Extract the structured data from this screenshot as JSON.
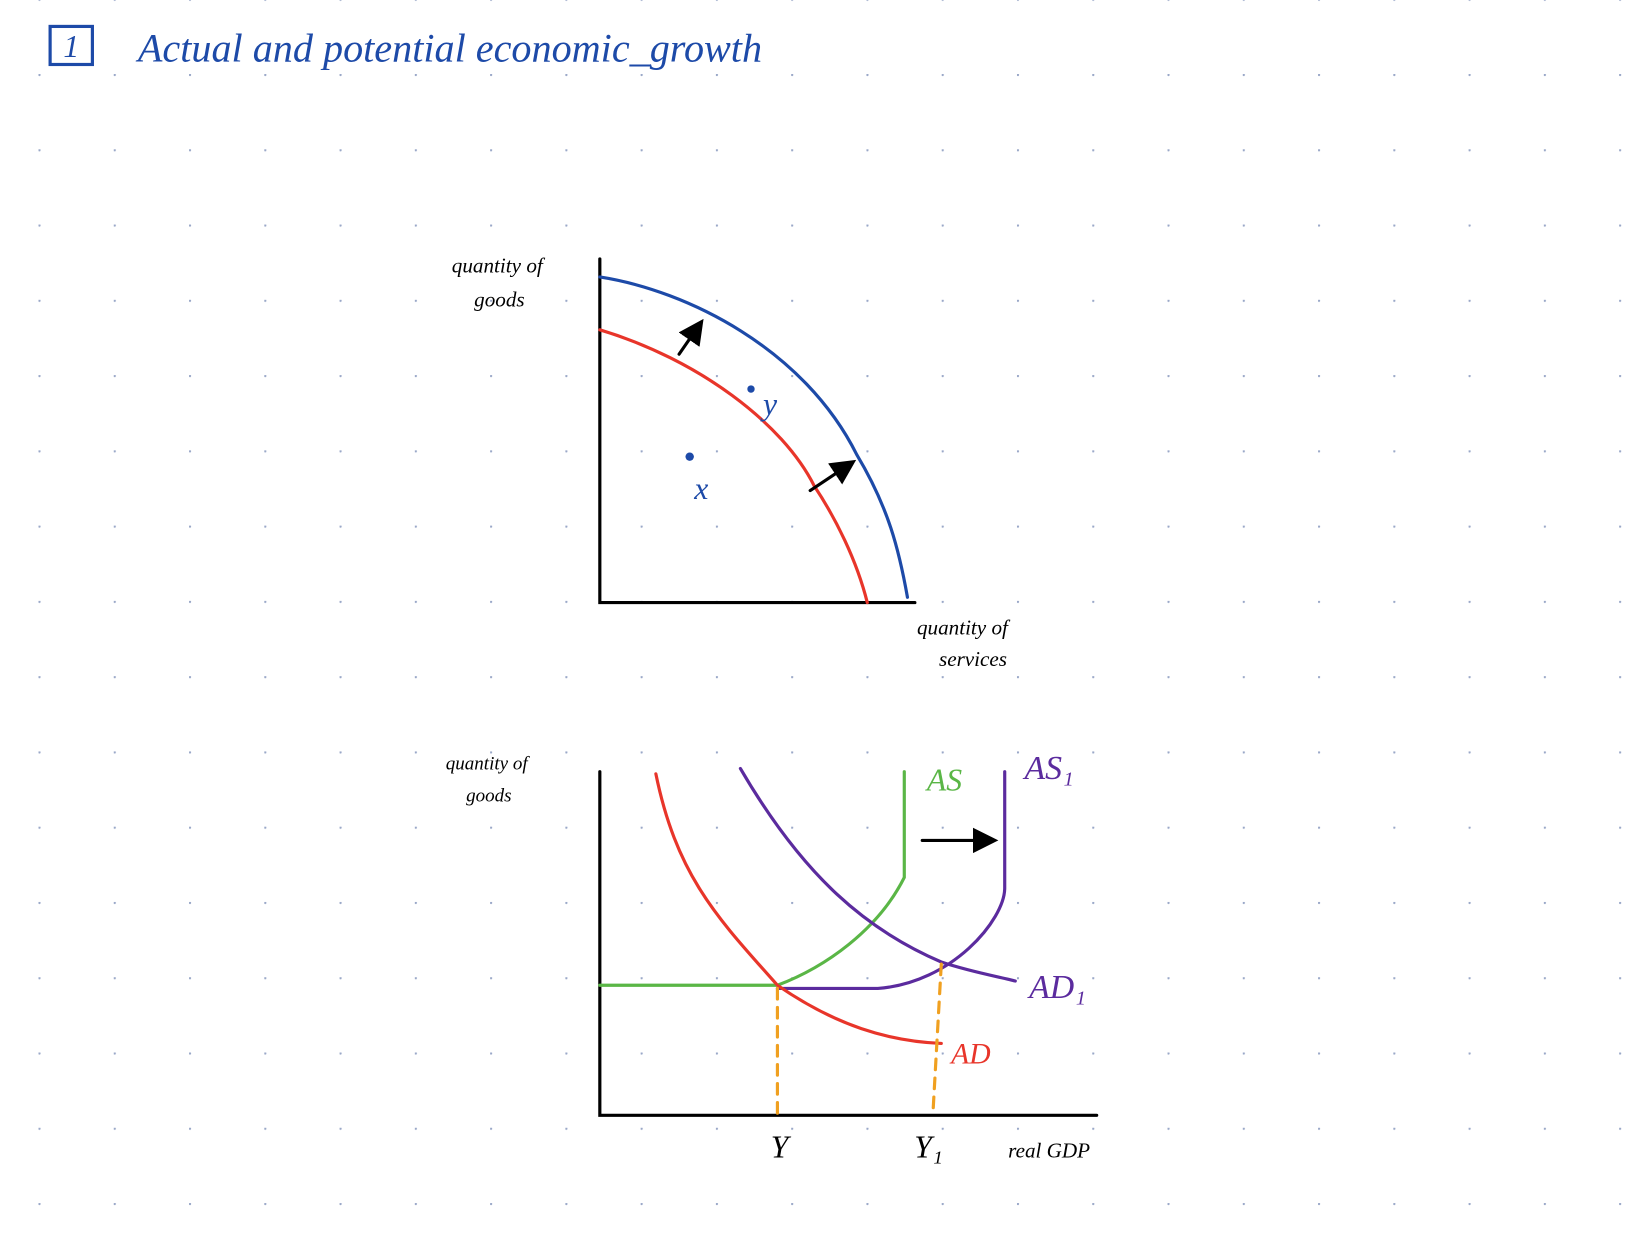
{
  "header": {
    "number": "1",
    "title": "Actual and potential economic_growth"
  },
  "ppf": {
    "y_label": [
      "quantity of",
      "goods"
    ],
    "x_label": [
      "quantity of",
      "services"
    ],
    "points": [
      "x",
      "y"
    ]
  },
  "ad_as": {
    "y_label": [
      "quantity of",
      "goods"
    ],
    "x_label": "real GDP",
    "curves": [
      "AS",
      "AS₁",
      "AD",
      "AD₁"
    ],
    "x_marks": [
      "Y",
      "Y₁"
    ]
  }
}
